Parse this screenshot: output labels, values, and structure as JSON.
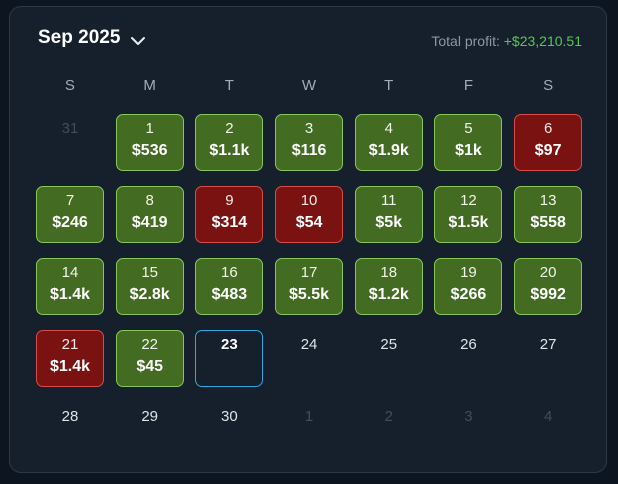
{
  "header": {
    "month_label": "Sep 2025",
    "total_profit_label": "Total profit:",
    "total_profit_value": "+$23,210.51"
  },
  "weekdays": [
    "S",
    "M",
    "T",
    "W",
    "T",
    "F",
    "S"
  ],
  "days": [
    {
      "day": "31",
      "amount": "",
      "state": "muted"
    },
    {
      "day": "1",
      "amount": "$536",
      "state": "profit"
    },
    {
      "day": "2",
      "amount": "$1.1k",
      "state": "profit"
    },
    {
      "day": "3",
      "amount": "$116",
      "state": "profit"
    },
    {
      "day": "4",
      "amount": "$1.9k",
      "state": "profit"
    },
    {
      "day": "5",
      "amount": "$1k",
      "state": "profit"
    },
    {
      "day": "6",
      "amount": "$97",
      "state": "loss"
    },
    {
      "day": "7",
      "amount": "$246",
      "state": "profit"
    },
    {
      "day": "8",
      "amount": "$419",
      "state": "profit"
    },
    {
      "day": "9",
      "amount": "$314",
      "state": "loss"
    },
    {
      "day": "10",
      "amount": "$54",
      "state": "loss"
    },
    {
      "day": "11",
      "amount": "$5k",
      "state": "profit"
    },
    {
      "day": "12",
      "amount": "$1.5k",
      "state": "profit"
    },
    {
      "day": "13",
      "amount": "$558",
      "state": "profit"
    },
    {
      "day": "14",
      "amount": "$1.4k",
      "state": "profit"
    },
    {
      "day": "15",
      "amount": "$2.8k",
      "state": "profit"
    },
    {
      "day": "16",
      "amount": "$483",
      "state": "profit"
    },
    {
      "day": "17",
      "amount": "$5.5k",
      "state": "profit"
    },
    {
      "day": "18",
      "amount": "$1.2k",
      "state": "profit"
    },
    {
      "day": "19",
      "amount": "$266",
      "state": "profit"
    },
    {
      "day": "20",
      "amount": "$992",
      "state": "profit"
    },
    {
      "day": "21",
      "amount": "$1.4k",
      "state": "loss"
    },
    {
      "day": "22",
      "amount": "$45",
      "state": "profit"
    },
    {
      "day": "23",
      "amount": "",
      "state": "today"
    },
    {
      "day": "24",
      "amount": "",
      "state": "plain"
    },
    {
      "day": "25",
      "amount": "",
      "state": "plain"
    },
    {
      "day": "26",
      "amount": "",
      "state": "plain"
    },
    {
      "day": "27",
      "amount": "",
      "state": "plain"
    },
    {
      "day": "28",
      "amount": "",
      "state": "plain"
    },
    {
      "day": "29",
      "amount": "",
      "state": "plain"
    },
    {
      "day": "30",
      "amount": "",
      "state": "plain"
    },
    {
      "day": "1",
      "amount": "",
      "state": "muted"
    },
    {
      "day": "2",
      "amount": "",
      "state": "muted"
    },
    {
      "day": "3",
      "amount": "",
      "state": "muted"
    },
    {
      "day": "4",
      "amount": "",
      "state": "muted"
    }
  ],
  "colors": {
    "profit_fill": "#436b22",
    "profit_border": "#86c95a",
    "loss_fill": "#7a1212",
    "loss_border": "#d94a4a",
    "today_border": "#33a8df",
    "total_profit_text": "#5cc35c"
  },
  "icons": {
    "month_dropdown": "chevron-down-icon"
  }
}
